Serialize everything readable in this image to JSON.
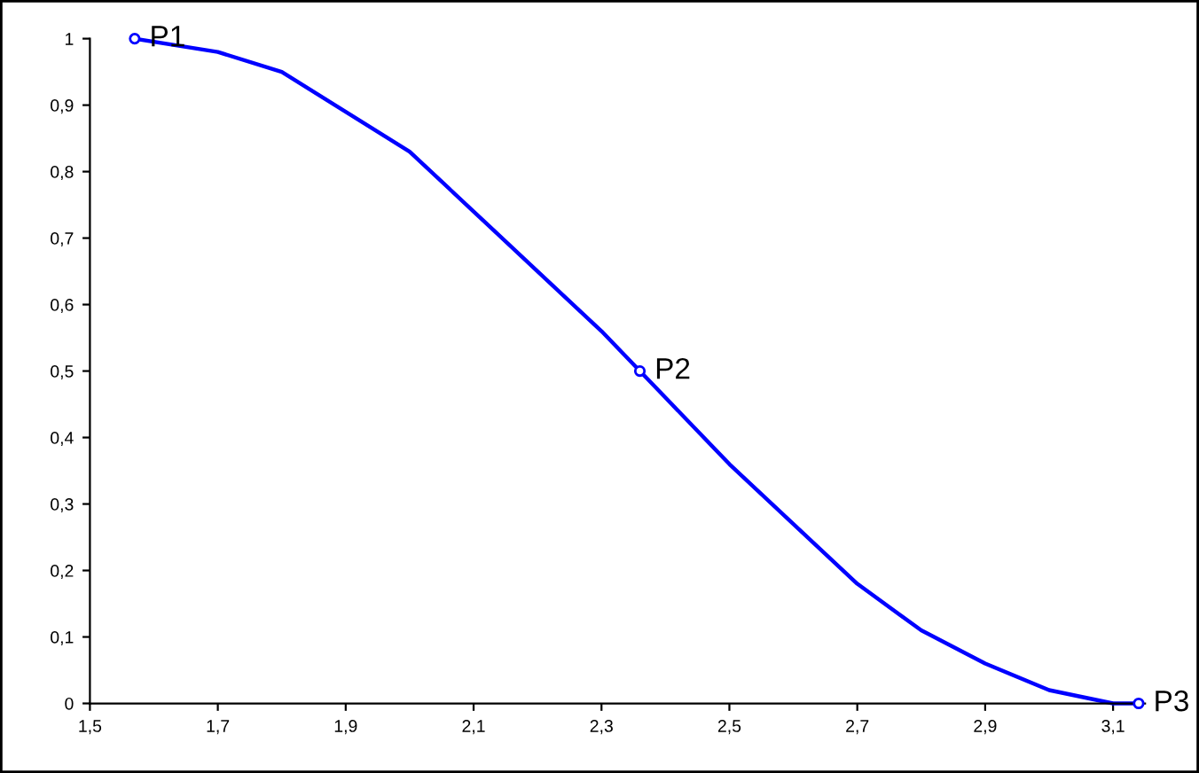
{
  "chart_data": {
    "type": "line",
    "x": [
      1.57,
      1.7,
      1.8,
      1.9,
      2.0,
      2.1,
      2.2,
      2.3,
      2.36,
      2.4,
      2.5,
      2.6,
      2.7,
      2.8,
      2.9,
      3.0,
      3.1,
      3.14
    ],
    "series": [
      {
        "color": "#0000ff",
        "marker": "none",
        "values": [
          1.0,
          0.98,
          0.95,
          0.89,
          0.83,
          0.74,
          0.65,
          0.56,
          0.5,
          0.46,
          0.36,
          0.27,
          0.18,
          0.11,
          0.06,
          0.02,
          0.0,
          0.0
        ]
      },
      {
        "type": "scatter",
        "color": "#0000ff",
        "marker": "circle",
        "x": [
          1.57,
          2.36,
          3.14
        ],
        "values": [
          1.0,
          0.5,
          0.0
        ]
      }
    ],
    "annotations": [
      {
        "text": "P1",
        "x": 1.57,
        "y": 1.0
      },
      {
        "text": "P2",
        "x": 2.36,
        "y": 0.5
      },
      {
        "text": "P3",
        "x": 3.14,
        "y": 0.0
      }
    ],
    "xlim": [
      1.5,
      3.15
    ],
    "ylim": [
      0,
      1
    ],
    "xticks": [
      {
        "value": 1.5,
        "label": "1,5"
      },
      {
        "value": 1.7,
        "label": "1,7"
      },
      {
        "value": 1.9,
        "label": "1,9"
      },
      {
        "value": 2.1,
        "label": "2,1"
      },
      {
        "value": 2.3,
        "label": "2,3"
      },
      {
        "value": 2.5,
        "label": "2,5"
      },
      {
        "value": 2.7,
        "label": "2,7"
      },
      {
        "value": 2.9,
        "label": "2,9"
      },
      {
        "value": 3.1,
        "label": "3,1"
      }
    ],
    "yticks": [
      0,
      {
        "value": 0.1,
        "label": "0,1"
      },
      {
        "value": 0.2,
        "label": "0,2"
      },
      {
        "value": 0.3,
        "label": "0,3"
      },
      {
        "value": 0.4,
        "label": "0,4"
      },
      {
        "value": 0.5,
        "label": "0,5"
      },
      {
        "value": 0.6,
        "label": "0,6"
      },
      {
        "value": 0.7,
        "label": "0,7"
      },
      {
        "value": 0.8,
        "label": "0,8"
      },
      {
        "value": 0.9,
        "label": "0,9"
      },
      1
    ],
    "grid": false,
    "legend": false
  }
}
